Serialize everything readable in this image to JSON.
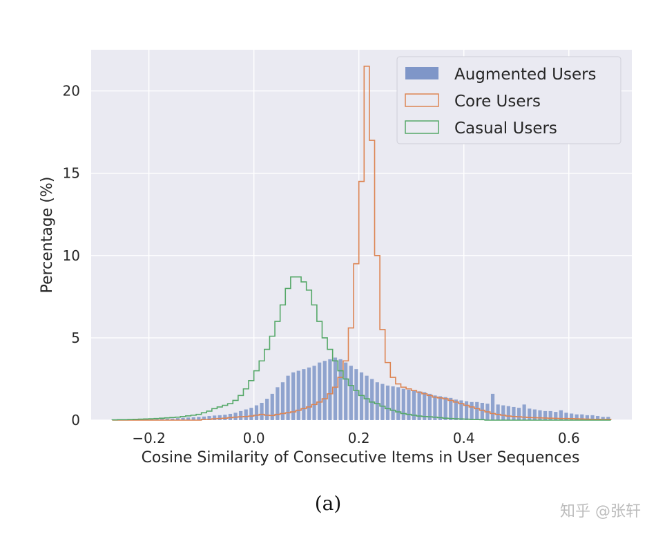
{
  "chart_data": {
    "type": "histogram",
    "xlabel": "Cosine Similarity of Consecutive Items in User Sequences",
    "ylabel": "Percentage (%)",
    "xlim": [
      -0.31,
      0.72
    ],
    "ylim": [
      0,
      22.5
    ],
    "xticks": [
      -0.2,
      0.0,
      0.2,
      0.4,
      0.6
    ],
    "xtick_labels": [
      "−0.2",
      "0.0",
      "0.2",
      "0.4",
      "0.6"
    ],
    "yticks": [
      0,
      5,
      10,
      15,
      20
    ],
    "ytick_labels": [
      "0",
      "5",
      "10",
      "15",
      "20"
    ],
    "grid": true,
    "legend_position": "top-right",
    "bin_width": 0.01,
    "bin_start": -0.27,
    "series": [
      {
        "name": "Augmented Users",
        "style": "filled-bars",
        "color": "#7f96c8",
        "values": [
          0.02,
          0.02,
          0.03,
          0.03,
          0.04,
          0.04,
          0.05,
          0.06,
          0.07,
          0.08,
          0.09,
          0.1,
          0.12,
          0.14,
          0.16,
          0.18,
          0.2,
          0.22,
          0.25,
          0.28,
          0.3,
          0.33,
          0.38,
          0.45,
          0.55,
          0.65,
          0.75,
          0.9,
          1.05,
          1.3,
          1.6,
          2.0,
          2.3,
          2.7,
          2.9,
          3.0,
          3.1,
          3.2,
          3.3,
          3.5,
          3.6,
          3.7,
          3.8,
          3.7,
          3.5,
          3.3,
          3.1,
          2.9,
          2.7,
          2.5,
          2.3,
          2.2,
          2.1,
          2.05,
          2.0,
          1.9,
          1.85,
          1.8,
          1.75,
          1.7,
          1.6,
          1.5,
          1.45,
          1.4,
          1.35,
          1.25,
          1.2,
          1.15,
          1.1,
          1.1,
          1.05,
          1.0,
          1.6,
          0.95,
          0.9,
          0.85,
          0.8,
          0.75,
          0.95,
          0.7,
          0.65,
          0.6,
          0.55,
          0.55,
          0.5,
          0.6,
          0.45,
          0.4,
          0.35,
          0.35,
          0.3,
          0.3,
          0.25,
          0.2,
          0.2
        ]
      },
      {
        "name": "Core Users",
        "style": "step-outline",
        "color": "#dd8452",
        "values": [
          0,
          0,
          0,
          0,
          0,
          0,
          0,
          0,
          0,
          0,
          0,
          0,
          0,
          0,
          0,
          0,
          0,
          0.05,
          0.05,
          0.08,
          0.1,
          0.12,
          0.15,
          0.18,
          0.2,
          0.22,
          0.25,
          0.3,
          0.35,
          0.3,
          0.28,
          0.35,
          0.4,
          0.45,
          0.5,
          0.6,
          0.7,
          0.8,
          0.95,
          1.1,
          1.3,
          1.6,
          2.0,
          2.6,
          3.6,
          5.6,
          9.5,
          14.5,
          21.5,
          17.0,
          10.0,
          5.5,
          3.5,
          2.6,
          2.2,
          2.0,
          1.9,
          1.8,
          1.7,
          1.6,
          1.5,
          1.4,
          1.35,
          1.3,
          1.2,
          1.1,
          1.0,
          0.9,
          0.8,
          0.7,
          0.6,
          0.5,
          0.4,
          0.35,
          0.3,
          0.25,
          0.22,
          0.2,
          0.18,
          0.16,
          0.15,
          0.14,
          0.13,
          0.12,
          0.11,
          0.1,
          0.1,
          0.09,
          0.08,
          0.07,
          0.06,
          0.05,
          0.05,
          0.04,
          0.05
        ]
      },
      {
        "name": "Casual Users",
        "style": "step-outline",
        "color": "#55a868",
        "values": [
          0.02,
          0.03,
          0.03,
          0.04,
          0.05,
          0.06,
          0.07,
          0.08,
          0.1,
          0.12,
          0.14,
          0.16,
          0.18,
          0.22,
          0.26,
          0.3,
          0.35,
          0.45,
          0.55,
          0.7,
          0.8,
          0.9,
          1.0,
          1.2,
          1.5,
          1.9,
          2.4,
          3.0,
          3.6,
          4.3,
          5.1,
          6.0,
          7.0,
          8.0,
          8.7,
          8.7,
          8.4,
          7.9,
          7.0,
          6.0,
          5.0,
          4.3,
          3.6,
          3.0,
          2.5,
          2.1,
          1.8,
          1.5,
          1.3,
          1.1,
          1.0,
          0.85,
          0.7,
          0.6,
          0.5,
          0.4,
          0.35,
          0.3,
          0.25,
          0.22,
          0.2,
          0.18,
          0.15,
          0.12,
          0.1,
          0.08,
          0.07,
          0.06,
          0.05,
          0.04,
          0.03,
          0,
          0,
          0,
          0,
          0,
          0,
          0,
          0,
          0,
          0,
          0,
          0,
          0,
          0,
          0,
          0,
          0,
          0,
          0,
          0,
          0,
          0,
          0,
          0
        ]
      }
    ]
  },
  "caption": "(a)",
  "watermark": "知乎 @张轩"
}
